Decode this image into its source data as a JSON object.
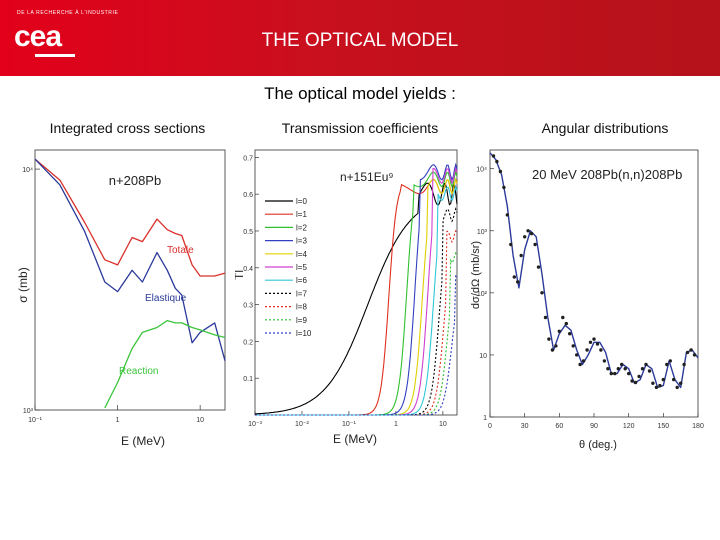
{
  "header": {
    "brand_small": "DE LA RECHERCHE À L'INDUSTRIE",
    "logo_text": "cea",
    "title": "THE OPTICAL MODEL"
  },
  "subtitle": "The optical model yields :",
  "captions": [
    "Integrated cross sections",
    "Transmission coefficients",
    "Angular distributions"
  ],
  "chart_data": [
    {
      "type": "line",
      "title": "n+208Pb",
      "xlabel": "E (MeV)",
      "ylabel": "σ (mb)",
      "x_scale": "log",
      "y_scale": "log",
      "xlim": [
        0.1,
        20
      ],
      "ylim": [
        1000,
        12000
      ],
      "x_tick_labels": [
        "10⁻¹",
        "1",
        "10"
      ],
      "y_tick_labels": [
        "10³",
        "10⁴"
      ],
      "x": [
        0.1,
        0.2,
        0.4,
        0.7,
        1,
        1.5,
        2,
        3,
        4,
        5,
        6,
        8,
        10,
        15,
        20
      ],
      "series": [
        {
          "name": "Totale",
          "color": "#d9302b",
          "values": [
            11000,
            9000,
            6000,
            4200,
            4000,
            5200,
            5000,
            6200,
            5600,
            5400,
            5300,
            4000,
            3600,
            3600,
            3700
          ]
        },
        {
          "name": "Elastique",
          "color": "#2b3a9a",
          "values": [
            11000,
            8600,
            5500,
            3400,
            3100,
            3800,
            3400,
            4500,
            3800,
            3200,
            3000,
            1900,
            2100,
            2300,
            1600
          ]
        },
        {
          "name": "Reaction",
          "color": "#3cc43c",
          "values": [
            0,
            0,
            0,
            1020,
            1300,
            1800,
            2100,
            2200,
            2350,
            2300,
            2300,
            2200,
            2150,
            2050,
            2000
          ]
        }
      ]
    },
    {
      "type": "line",
      "title": "n+151Eu⁹",
      "xlabel": "E (MeV)",
      "ylabel": "Tl",
      "x_scale": "log",
      "xlim": [
        0.001,
        20
      ],
      "ylim": [
        0,
        0.72
      ],
      "x_tick_labels": [
        "10⁻³",
        "10⁻²",
        "10⁻¹",
        "1",
        "10"
      ],
      "y_tick_labels": [
        "0.1",
        "0.2",
        "0.3",
        "0.4",
        "0.5",
        "0.6",
        "0.7"
      ],
      "series": [
        {
          "name": "l=0",
          "color": "#000000",
          "dash": "",
          "threshold": 0.002,
          "rise": 0.55,
          "peak": 0.6
        },
        {
          "name": "l=1",
          "color": "#e03020",
          "dash": "",
          "threshold": 0.5,
          "rise": 1.0,
          "peak": 0.64
        },
        {
          "name": "l=2",
          "color": "#30c030",
          "dash": "",
          "threshold": 1.2,
          "rise": 1.8,
          "peak": 0.66
        },
        {
          "name": "l=3",
          "color": "#3040c0",
          "dash": "",
          "threshold": 1.8,
          "rise": 2.5,
          "peak": 0.68
        },
        {
          "name": "l=4",
          "color": "#e0d000",
          "dash": "",
          "threshold": 2.6,
          "rise": 3.5,
          "peak": 0.64
        },
        {
          "name": "l=5",
          "color": "#d040d0",
          "dash": "",
          "threshold": 3.4,
          "rise": 4.5,
          "peak": 0.67
        },
        {
          "name": "l=6",
          "color": "#30c8d8",
          "dash": "",
          "threshold": 4.5,
          "rise": 6.0,
          "peak": 0.62
        },
        {
          "name": "l=7",
          "color": "#000000",
          "dash": "2,2",
          "threshold": 6.0,
          "rise": 7.5,
          "peak": 0.56
        },
        {
          "name": "l=8",
          "color": "#e03020",
          "dash": "2,2",
          "threshold": 7.5,
          "rise": 9.0,
          "peak": 0.5
        },
        {
          "name": "l=9",
          "color": "#30c030",
          "dash": "2,2",
          "threshold": 9.0,
          "rise": 11.0,
          "peak": 0.44
        },
        {
          "name": "l=10",
          "color": "#3040c0",
          "dash": "2,2",
          "threshold": 11.0,
          "rise": 14.0,
          "peak": 0.38
        }
      ]
    },
    {
      "type": "scatter",
      "title": "20 MeV 208Pb(n,n)208Pb",
      "xlabel": "θ (deg.)",
      "ylabel": "dσ/dΩ (mb/sr)",
      "y_scale": "log",
      "xlim": [
        0,
        180
      ],
      "ylim": [
        1,
        20000
      ],
      "x_tick_labels": [
        "0",
        "30",
        "60",
        "90",
        "120",
        "150",
        "180"
      ],
      "y_tick_labels": [
        "1",
        "10",
        "10²",
        "10³",
        "10⁴"
      ],
      "theory_color": "#2b3a9a",
      "point_color": "#202020",
      "curve": {
        "x": [
          0,
          5,
          10,
          15,
          20,
          25,
          30,
          35,
          40,
          45,
          50,
          55,
          60,
          65,
          70,
          75,
          80,
          85,
          90,
          95,
          100,
          105,
          110,
          115,
          120,
          125,
          130,
          135,
          140,
          145,
          150,
          155,
          160,
          165,
          170,
          175,
          180
        ],
        "y": [
          18000,
          14000,
          8000,
          2500,
          400,
          120,
          500,
          1000,
          800,
          200,
          40,
          12,
          22,
          30,
          25,
          12,
          7,
          10,
          16,
          16,
          11,
          5,
          5,
          7,
          6,
          3.5,
          4,
          7,
          6,
          3,
          3.2,
          8,
          4,
          3,
          11,
          12,
          9
        ]
      },
      "points": {
        "x": [
          3,
          6,
          9,
          12,
          15,
          18,
          21,
          24,
          27,
          30,
          33,
          36,
          39,
          42,
          45,
          48,
          51,
          54,
          57,
          60,
          63,
          66,
          69,
          72,
          75,
          78,
          81,
          84,
          87,
          90,
          93,
          96,
          99,
          102,
          105,
          108,
          111,
          114,
          117,
          120,
          123,
          126,
          129,
          132,
          135,
          138,
          141,
          144,
          147,
          150,
          153,
          156,
          159,
          162,
          165,
          168,
          171,
          174,
          177
        ],
        "y": [
          16000,
          13000,
          9000,
          5000,
          1800,
          600,
          180,
          150,
          400,
          800,
          1000,
          900,
          600,
          260,
          100,
          40,
          18,
          12,
          14,
          24,
          40,
          32,
          22,
          14,
          10,
          7,
          8,
          12,
          16,
          18,
          15,
          12,
          8,
          6,
          5,
          5,
          6,
          7,
          6,
          5,
          3.8,
          3.6,
          4.5,
          6,
          7,
          5.5,
          3.5,
          3,
          3.2,
          4,
          7,
          8,
          4,
          3,
          3.5,
          7,
          11,
          12,
          10
        ]
      }
    }
  ]
}
